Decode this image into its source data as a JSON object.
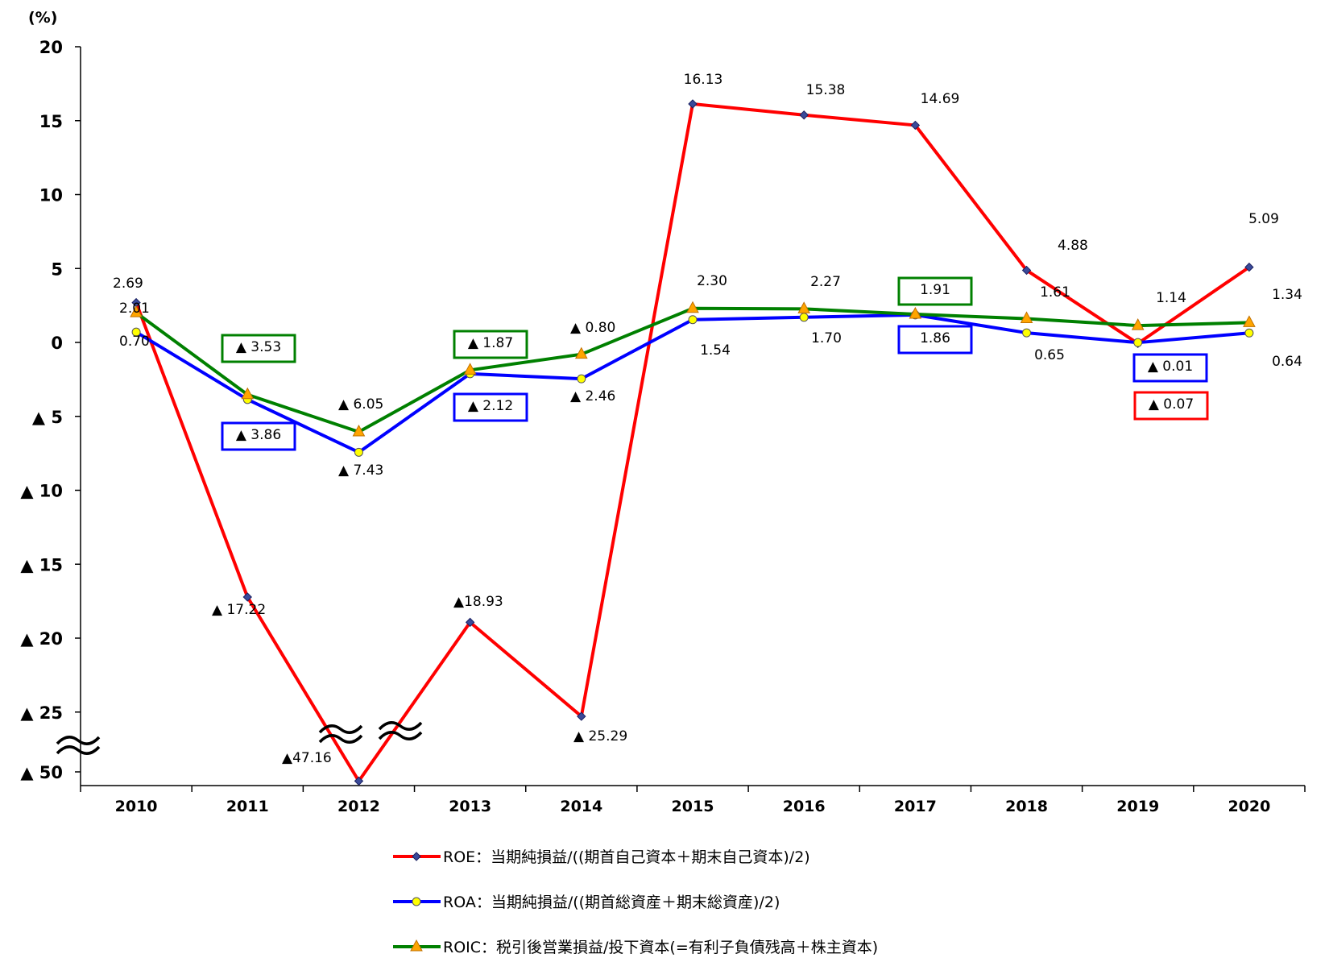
{
  "chart_data": {
    "type": "line",
    "unit_label": "(%)",
    "x": [
      "2010",
      "2011",
      "2012",
      "2013",
      "2014",
      "2015",
      "2016",
      "2017",
      "2018",
      "2019",
      "2020"
    ],
    "y_ticks": [
      {
        "value": 20,
        "label": "20"
      },
      {
        "value": 15,
        "label": "15"
      },
      {
        "value": 10,
        "label": "10"
      },
      {
        "value": 5,
        "label": "5"
      },
      {
        "value": 0,
        "label": "0"
      },
      {
        "value": -5,
        "label": "▲ 5"
      },
      {
        "value": -10,
        "label": "▲ 10"
      },
      {
        "value": -15,
        "label": "▲ 15"
      },
      {
        "value": -20,
        "label": "▲ 20"
      },
      {
        "value": -25,
        "label": "▲ 25"
      },
      {
        "value": -50,
        "label": "▲ 50"
      }
    ],
    "axis_break": {
      "between": [
        -25,
        -50
      ],
      "symbol": "≈"
    },
    "series": [
      {
        "name": "ROE：当期純損益/((期首自己資本＋期末自己資本)/2)",
        "color": "#ff0000",
        "marker": "diamond",
        "marker_color": "#3a4a9a",
        "values": [
          2.69,
          -17.22,
          -47.16,
          -18.93,
          -25.29,
          16.13,
          15.38,
          14.69,
          4.88,
          -0.07,
          5.09
        ],
        "labels": [
          "2.69",
          "▲ 17.22",
          "▲47.16",
          "▲18.93",
          "▲ 25.29",
          "16.13",
          "15.38",
          "14.69",
          "4.88",
          "▲ 0.07",
          "5.09"
        ],
        "boxed": [
          false,
          false,
          false,
          false,
          false,
          false,
          false,
          false,
          false,
          true,
          false
        ]
      },
      {
        "name": "ROA：当期純損益/((期首総資産＋期末総資産)/2)",
        "color": "#0000ff",
        "marker": "circle",
        "marker_color": "#ffff00",
        "values": [
          0.7,
          -3.86,
          -7.43,
          -2.12,
          -2.46,
          1.54,
          1.7,
          1.86,
          0.65,
          -0.01,
          0.64
        ],
        "labels": [
          "0.70",
          "▲ 3.86",
          "▲ 7.43",
          "▲ 2.12",
          "▲ 2.46",
          "1.54",
          "1.70",
          "1.86",
          "0.65",
          "▲ 0.01",
          "0.64"
        ],
        "boxed": [
          false,
          true,
          false,
          true,
          false,
          false,
          false,
          true,
          false,
          true,
          false
        ]
      },
      {
        "name": "ROIC：税引後営業損益/投下資本(=有利子負債残高＋株主資本)",
        "color": "#008000",
        "marker": "triangle",
        "marker_color": "#ffa500",
        "values": [
          2.01,
          -3.53,
          -6.05,
          -1.87,
          -0.8,
          2.3,
          2.27,
          1.91,
          1.61,
          1.14,
          1.34
        ],
        "labels": [
          "2.01",
          "▲ 3.53",
          "▲ 6.05",
          "▲ 1.87",
          "▲ 0.80",
          "2.30",
          "2.27",
          "1.91",
          "1.61",
          "1.14",
          "1.34"
        ],
        "boxed": [
          false,
          true,
          false,
          true,
          false,
          false,
          false,
          true,
          false,
          false,
          false
        ]
      }
    ]
  }
}
